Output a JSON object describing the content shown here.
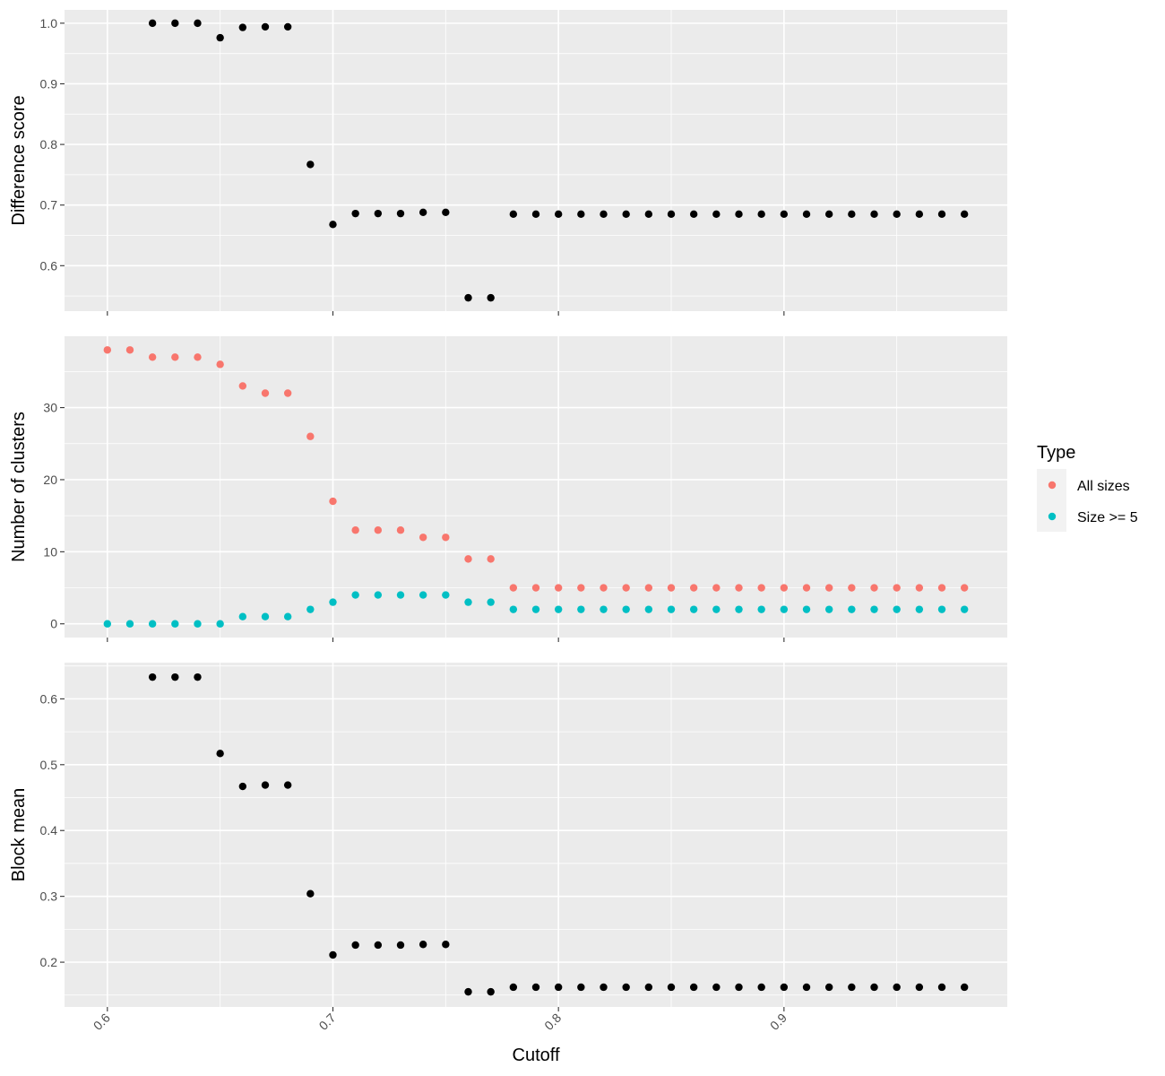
{
  "chart_data": {
    "type": "scatter",
    "xlabel": "Cutoff",
    "x_ticks": [
      "0.6",
      "0.7",
      "0.8",
      "0.9"
    ],
    "x_tick_values": [
      0.6,
      0.7,
      0.8,
      0.9
    ],
    "xlim": [
      0.581,
      0.999
    ],
    "grid": true,
    "legend": {
      "title": "Type",
      "position": "right",
      "entries": [
        {
          "label": "All sizes",
          "color": "#F8766D"
        },
        {
          "label": "Size >= 5",
          "color": "#00BFC4"
        }
      ]
    },
    "panels": [
      {
        "ylabel": "Difference score",
        "ylim": [
          0.525,
          1.022
        ],
        "y_ticks": [
          "0.6",
          "0.7",
          "0.8",
          "0.9",
          "1.0"
        ],
        "y_tick_values": [
          0.6,
          0.7,
          0.8,
          0.9,
          1.0
        ],
        "series": [
          {
            "color": "#000000",
            "x": [
              0.62,
              0.63,
              0.64,
              0.65,
              0.66,
              0.67,
              0.68,
              0.69,
              0.7,
              0.71,
              0.72,
              0.73,
              0.74,
              0.75,
              0.76,
              0.77,
              0.78,
              0.79,
              0.8,
              0.81,
              0.82,
              0.83,
              0.84,
              0.85,
              0.86,
              0.87,
              0.88,
              0.89,
              0.9,
              0.91,
              0.92,
              0.93,
              0.94,
              0.95,
              0.96,
              0.97,
              0.98
            ],
            "y": [
              1.0,
              1.0,
              1.0,
              0.976,
              0.993,
              0.994,
              0.994,
              0.767,
              0.668,
              0.686,
              0.686,
              0.686,
              0.688,
              0.688,
              0.547,
              0.547,
              0.685,
              0.685,
              0.685,
              0.685,
              0.685,
              0.685,
              0.685,
              0.685,
              0.685,
              0.685,
              0.685,
              0.685,
              0.685,
              0.685,
              0.685,
              0.685,
              0.685,
              0.685,
              0.685,
              0.685,
              0.685
            ]
          }
        ]
      },
      {
        "ylabel": "Number of clusters",
        "ylim": [
          -1.9,
          39.9
        ],
        "y_ticks": [
          "0",
          "10",
          "20",
          "30"
        ],
        "y_tick_values": [
          0,
          10,
          20,
          30
        ],
        "series": [
          {
            "name": "All sizes",
            "color": "#F8766D",
            "x": [
              0.6,
              0.61,
              0.62,
              0.63,
              0.64,
              0.65,
              0.66,
              0.67,
              0.68,
              0.69,
              0.7,
              0.71,
              0.72,
              0.73,
              0.74,
              0.75,
              0.76,
              0.77,
              0.78,
              0.79,
              0.8,
              0.81,
              0.82,
              0.83,
              0.84,
              0.85,
              0.86,
              0.87,
              0.88,
              0.89,
              0.9,
              0.91,
              0.92,
              0.93,
              0.94,
              0.95,
              0.96,
              0.97,
              0.98
            ],
            "y": [
              38,
              38,
              37,
              37,
              37,
              36,
              33,
              32,
              32,
              26,
              17,
              13,
              13,
              13,
              12,
              12,
              9,
              9,
              5,
              5,
              5,
              5,
              5,
              5,
              5,
              5,
              5,
              5,
              5,
              5,
              5,
              5,
              5,
              5,
              5,
              5,
              5,
              5,
              5
            ]
          },
          {
            "name": "Size >= 5",
            "color": "#00BFC4",
            "x": [
              0.6,
              0.61,
              0.62,
              0.63,
              0.64,
              0.65,
              0.66,
              0.67,
              0.68,
              0.69,
              0.7,
              0.71,
              0.72,
              0.73,
              0.74,
              0.75,
              0.76,
              0.77,
              0.78,
              0.79,
              0.8,
              0.81,
              0.82,
              0.83,
              0.84,
              0.85,
              0.86,
              0.87,
              0.88,
              0.89,
              0.9,
              0.91,
              0.92,
              0.93,
              0.94,
              0.95,
              0.96,
              0.97,
              0.98
            ],
            "y": [
              0,
              0,
              0,
              0,
              0,
              0,
              1,
              1,
              1,
              2,
              3,
              4,
              4,
              4,
              4,
              4,
              3,
              3,
              2,
              2,
              2,
              2,
              2,
              2,
              2,
              2,
              2,
              2,
              2,
              2,
              2,
              2,
              2,
              2,
              2,
              2,
              2,
              2,
              2
            ]
          }
        ]
      },
      {
        "ylabel": "Block mean",
        "ylim": [
          0.132,
          0.655
        ],
        "y_ticks": [
          "0.2",
          "0.3",
          "0.4",
          "0.5",
          "0.6"
        ],
        "y_tick_values": [
          0.2,
          0.3,
          0.4,
          0.5,
          0.6
        ],
        "series": [
          {
            "color": "#000000",
            "x": [
              0.62,
              0.63,
              0.64,
              0.65,
              0.66,
              0.67,
              0.68,
              0.69,
              0.7,
              0.71,
              0.72,
              0.73,
              0.74,
              0.75,
              0.76,
              0.77,
              0.78,
              0.79,
              0.8,
              0.81,
              0.82,
              0.83,
              0.84,
              0.85,
              0.86,
              0.87,
              0.88,
              0.89,
              0.9,
              0.91,
              0.92,
              0.93,
              0.94,
              0.95,
              0.96,
              0.97,
              0.98
            ],
            "y": [
              0.633,
              0.633,
              0.633,
              0.517,
              0.467,
              0.469,
              0.469,
              0.304,
              0.211,
              0.226,
              0.226,
              0.226,
              0.227,
              0.227,
              0.155,
              0.155,
              0.162,
              0.162,
              0.162,
              0.162,
              0.162,
              0.162,
              0.162,
              0.162,
              0.162,
              0.162,
              0.162,
              0.162,
              0.162,
              0.162,
              0.162,
              0.162,
              0.162,
              0.162,
              0.162,
              0.162,
              0.162
            ]
          }
        ]
      }
    ]
  }
}
